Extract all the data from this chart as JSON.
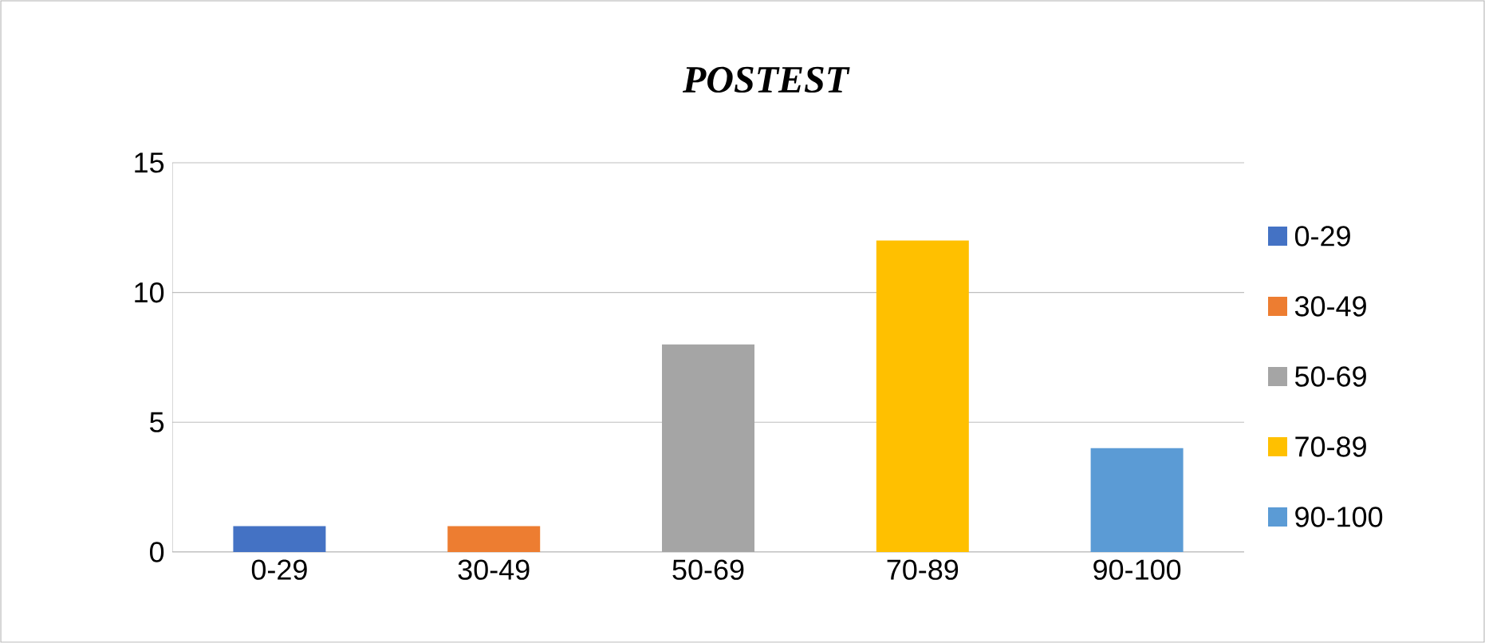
{
  "chart_data": {
    "type": "bar",
    "title": "POSTEST",
    "categories": [
      "0-29",
      "30-49",
      "50-69",
      "70-89",
      "90-100"
    ],
    "series": [
      {
        "name": "0-29",
        "color": "#4472c4",
        "values": [
          1,
          null,
          null,
          null,
          null
        ]
      },
      {
        "name": "30-49",
        "color": "#ed7d31",
        "values": [
          null,
          1,
          null,
          null,
          null
        ]
      },
      {
        "name": "50-69",
        "color": "#a5a5a5",
        "values": [
          null,
          null,
          8,
          null,
          null
        ]
      },
      {
        "name": "70-89",
        "color": "#ffc000",
        "values": [
          null,
          null,
          null,
          12,
          null
        ]
      },
      {
        "name": "90-100",
        "color": "#5b9bd5",
        "values": [
          null,
          null,
          null,
          null,
          4
        ]
      }
    ],
    "ylim": [
      0,
      15
    ],
    "yticks": [
      0,
      5,
      10,
      15
    ],
    "grid": "y",
    "legend": "right"
  }
}
